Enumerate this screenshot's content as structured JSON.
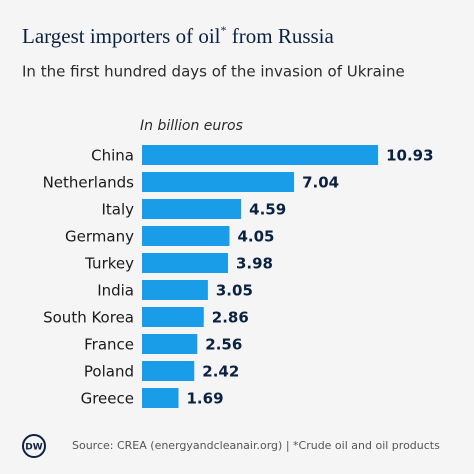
{
  "chart_data": {
    "type": "bar",
    "orientation": "horizontal",
    "title": {
      "before": "Largest importers of oil",
      "mark": "*",
      "after": " from Russia"
    },
    "subtitle": "In the first hundred days of the invasion of Ukraine",
    "unit_label": "In billion euros",
    "categories": [
      "China",
      "Netherlands",
      "Italy",
      "Germany",
      "Turkey",
      "India",
      "South Korea",
      "France",
      "Poland",
      "Greece"
    ],
    "values": [
      10.93,
      7.04,
      4.59,
      4.05,
      3.98,
      3.05,
      2.86,
      2.56,
      2.42,
      1.69
    ],
    "color": "#1a9de9",
    "source": "Source: CREA (energyandcleanair.org) | *Crude oil and oil products",
    "logo": "DW"
  }
}
